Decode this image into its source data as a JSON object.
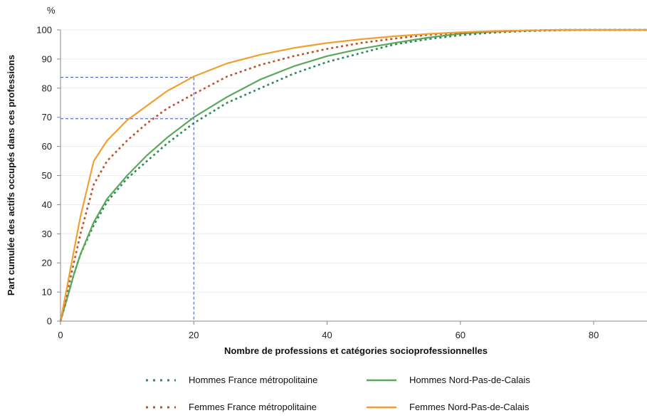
{
  "chart_data": {
    "type": "line",
    "title": "",
    "y_unit": "%",
    "xlabel": "Nombre de professions et catégories socioprofessionnelles",
    "ylabel": "Part cumulée des actifs occupés dans ces professions",
    "xlim": [
      0,
      88
    ],
    "ylim": [
      0,
      100
    ],
    "x_ticks": [
      0,
      20,
      40,
      60,
      80
    ],
    "y_ticks": [
      0,
      10,
      20,
      30,
      40,
      50,
      60,
      70,
      80,
      90,
      100
    ],
    "grid": "horizontal",
    "legend_position": "bottom",
    "series": [
      {
        "name": "Hommes France métropolitaine",
        "color": "#2e8b57",
        "style": "dotted",
        "x": [
          0,
          1,
          2,
          3,
          5,
          7,
          10,
          13,
          16,
          20,
          25,
          30,
          35,
          40,
          45,
          50,
          55,
          60,
          65,
          70,
          75,
          80,
          88
        ],
        "y": [
          0,
          8,
          16,
          23,
          33,
          41,
          49,
          55,
          61,
          68,
          75,
          80,
          85,
          89,
          92,
          95,
          96.8,
          98.2,
          99.1,
          99.6,
          99.9,
          100,
          100
        ]
      },
      {
        "name": "Hommes Nord-Pas-de-Calais",
        "color": "#5aa85a",
        "style": "solid",
        "x": [
          0,
          1,
          2,
          3,
          5,
          7,
          10,
          13,
          16,
          20,
          25,
          30,
          35,
          40,
          45,
          50,
          55,
          60,
          65,
          70,
          75,
          80,
          88
        ],
        "y": [
          0,
          8,
          16,
          23,
          34,
          42,
          50,
          57,
          63,
          70,
          77,
          83,
          87.5,
          91,
          93.5,
          95.5,
          97.3,
          98.7,
          99.4,
          99.8,
          100,
          100,
          100
        ]
      },
      {
        "name": "Femmes France métropolitaine",
        "color": "#c0502a",
        "style": "dotted",
        "x": [
          0,
          1,
          2,
          3,
          5,
          7,
          10,
          13,
          16,
          20,
          25,
          30,
          35,
          40,
          45,
          50,
          55,
          60,
          65,
          70,
          75,
          80,
          88
        ],
        "y": [
          0,
          10,
          20,
          30,
          47,
          55,
          62,
          68,
          73,
          78,
          84,
          88,
          91,
          93.5,
          95.5,
          97,
          98.3,
          99,
          99.5,
          99.8,
          100,
          100,
          100
        ]
      },
      {
        "name": "Femmes Nord-Pas-de-Calais",
        "color": "#f0a030",
        "style": "solid",
        "x": [
          0,
          1,
          2,
          3,
          5,
          7,
          10,
          13,
          16,
          20,
          25,
          30,
          35,
          40,
          45,
          50,
          55,
          60,
          65,
          70,
          75,
          80,
          88
        ],
        "y": [
          0,
          12,
          24,
          36,
          55,
          62,
          69,
          74,
          79,
          84,
          88.5,
          91.5,
          93.8,
          95.5,
          96.8,
          97.8,
          98.6,
          99.2,
          99.6,
          99.8,
          100,
          100,
          100
        ]
      }
    ],
    "reference_lines": [
      {
        "x": 20,
        "y": 83.7,
        "color": "#3b4cc0",
        "style": "dashed"
      },
      {
        "x": 20,
        "y": 69.5,
        "color": "#3b4cc0",
        "style": "dashed"
      }
    ],
    "legend": {
      "items": [
        {
          "label": "Hommes France métropolitaine",
          "series": 0
        },
        {
          "label": "Hommes Nord-Pas-de-Calais",
          "series": 1
        },
        {
          "label": "Femmes France métropolitaine",
          "series": 2
        },
        {
          "label": "Femmes Nord-Pas-de-Calais",
          "series": 3
        }
      ]
    }
  }
}
